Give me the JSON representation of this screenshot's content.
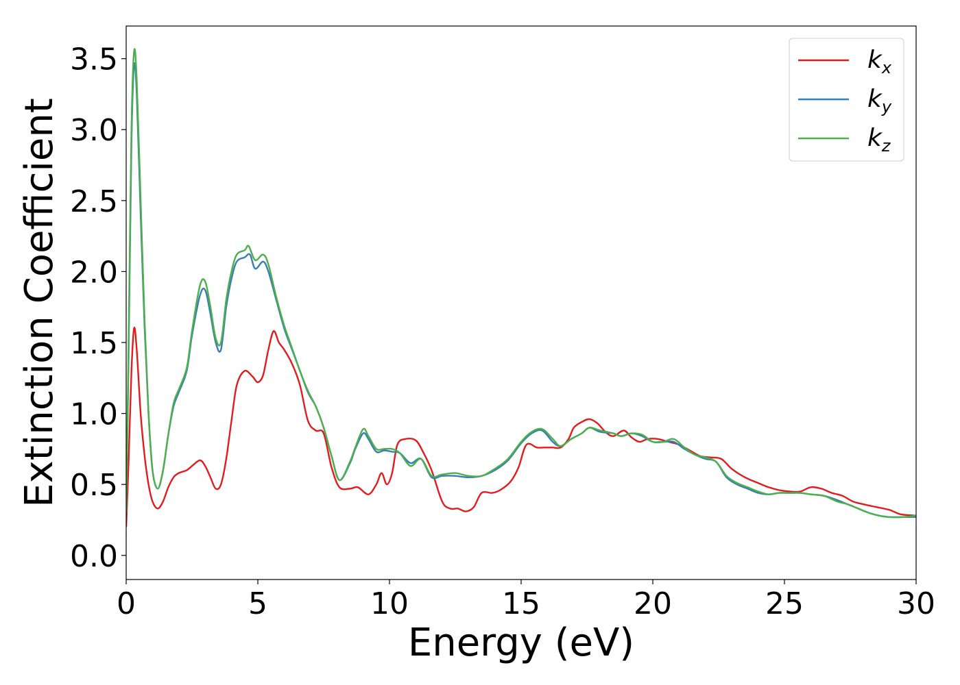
{
  "chart_data": {
    "type": "line",
    "xlabel": "Energy (eV)",
    "ylabel": "Extinction Coefficient",
    "xlim": [
      0,
      30
    ],
    "ylim": [
      -0.17,
      3.73
    ],
    "xticks": [
      0,
      5,
      10,
      15,
      20,
      25,
      30
    ],
    "xtick_labels": [
      "0",
      "5",
      "10",
      "15",
      "20",
      "25",
      "30"
    ],
    "yticks": [
      0.0,
      0.5,
      1.0,
      1.5,
      2.0,
      2.5,
      3.0,
      3.5
    ],
    "ytick_labels": [
      "0.0",
      "0.5",
      "1.0",
      "1.5",
      "2.0",
      "2.5",
      "3.0",
      "3.5"
    ],
    "grid": false,
    "legend_position": "top-right",
    "series": [
      {
        "name": "k",
        "subscript": "x",
        "color": "#e41a1c",
        "points": [
          [
            0,
            0.2
          ],
          [
            0.1,
            0.7
          ],
          [
            0.2,
            1.3
          ],
          [
            0.3,
            1.6
          ],
          [
            0.4,
            1.45
          ],
          [
            0.55,
            1.0
          ],
          [
            0.7,
            0.7
          ],
          [
            0.85,
            0.5
          ],
          [
            1.0,
            0.38
          ],
          [
            1.2,
            0.33
          ],
          [
            1.4,
            0.38
          ],
          [
            1.6,
            0.48
          ],
          [
            1.8,
            0.55
          ],
          [
            2.0,
            0.58
          ],
          [
            2.3,
            0.6
          ],
          [
            2.5,
            0.63
          ],
          [
            2.8,
            0.67
          ],
          [
            3.0,
            0.63
          ],
          [
            3.2,
            0.55
          ],
          [
            3.4,
            0.47
          ],
          [
            3.6,
            0.5
          ],
          [
            3.8,
            0.68
          ],
          [
            4.0,
            0.95
          ],
          [
            4.2,
            1.2
          ],
          [
            4.5,
            1.3
          ],
          [
            4.8,
            1.26
          ],
          [
            5.0,
            1.22
          ],
          [
            5.2,
            1.27
          ],
          [
            5.4,
            1.45
          ],
          [
            5.6,
            1.58
          ],
          [
            5.8,
            1.5
          ],
          [
            6.0,
            1.45
          ],
          [
            6.3,
            1.35
          ],
          [
            6.6,
            1.2
          ],
          [
            6.9,
            0.95
          ],
          [
            7.2,
            0.88
          ],
          [
            7.5,
            0.86
          ],
          [
            7.8,
            0.62
          ],
          [
            8.1,
            0.48
          ],
          [
            8.5,
            0.47
          ],
          [
            8.8,
            0.48
          ],
          [
            9.2,
            0.43
          ],
          [
            9.5,
            0.5
          ],
          [
            9.7,
            0.58
          ],
          [
            9.9,
            0.5
          ],
          [
            10.1,
            0.58
          ],
          [
            10.3,
            0.78
          ],
          [
            10.6,
            0.82
          ],
          [
            11.0,
            0.81
          ],
          [
            11.3,
            0.72
          ],
          [
            11.6,
            0.6
          ],
          [
            12.0,
            0.38
          ],
          [
            12.3,
            0.33
          ],
          [
            12.6,
            0.33
          ],
          [
            12.9,
            0.31
          ],
          [
            13.2,
            0.34
          ],
          [
            13.5,
            0.44
          ],
          [
            13.9,
            0.44
          ],
          [
            14.2,
            0.46
          ],
          [
            14.6,
            0.52
          ],
          [
            14.9,
            0.62
          ],
          [
            15.2,
            0.78
          ],
          [
            15.6,
            0.76
          ],
          [
            15.9,
            0.76
          ],
          [
            16.2,
            0.76
          ],
          [
            16.5,
            0.76
          ],
          [
            16.8,
            0.82
          ],
          [
            17.0,
            0.9
          ],
          [
            17.3,
            0.94
          ],
          [
            17.6,
            0.96
          ],
          [
            17.9,
            0.93
          ],
          [
            18.2,
            0.87
          ],
          [
            18.5,
            0.84
          ],
          [
            18.9,
            0.88
          ],
          [
            19.2,
            0.83
          ],
          [
            19.5,
            0.8
          ],
          [
            19.8,
            0.82
          ],
          [
            20.2,
            0.82
          ],
          [
            20.6,
            0.8
          ],
          [
            21.0,
            0.78
          ],
          [
            21.4,
            0.74
          ],
          [
            21.8,
            0.7
          ],
          [
            22.2,
            0.69
          ],
          [
            22.6,
            0.68
          ],
          [
            23.0,
            0.61
          ],
          [
            23.5,
            0.55
          ],
          [
            24.0,
            0.51
          ],
          [
            24.4,
            0.48
          ],
          [
            24.8,
            0.46
          ],
          [
            25.2,
            0.45
          ],
          [
            25.6,
            0.45
          ],
          [
            26.0,
            0.48
          ],
          [
            26.4,
            0.47
          ],
          [
            26.8,
            0.44
          ],
          [
            27.2,
            0.42
          ],
          [
            27.6,
            0.38
          ],
          [
            28.0,
            0.36
          ],
          [
            28.5,
            0.34
          ],
          [
            29.0,
            0.32
          ],
          [
            29.4,
            0.29
          ],
          [
            30.0,
            0.28
          ]
        ]
      },
      {
        "name": "k",
        "subscript": "y",
        "color": "#377eb8",
        "points": [
          [
            0,
            0.3
          ],
          [
            0.1,
            1.5
          ],
          [
            0.2,
            2.9
          ],
          [
            0.3,
            3.45
          ],
          [
            0.4,
            3.25
          ],
          [
            0.55,
            2.4
          ],
          [
            0.7,
            1.6
          ],
          [
            0.85,
            1.0
          ],
          [
            1.0,
            0.6
          ],
          [
            1.2,
            0.47
          ],
          [
            1.4,
            0.6
          ],
          [
            1.6,
            0.85
          ],
          [
            1.8,
            1.05
          ],
          [
            2.0,
            1.15
          ],
          [
            2.3,
            1.3
          ],
          [
            2.5,
            1.55
          ],
          [
            2.8,
            1.83
          ],
          [
            3.0,
            1.87
          ],
          [
            3.2,
            1.7
          ],
          [
            3.4,
            1.5
          ],
          [
            3.6,
            1.45
          ],
          [
            3.8,
            1.75
          ],
          [
            4.0,
            1.95
          ],
          [
            4.2,
            2.07
          ],
          [
            4.5,
            2.1
          ],
          [
            4.7,
            2.12
          ],
          [
            4.9,
            2.02
          ],
          [
            5.2,
            2.07
          ],
          [
            5.4,
            2.0
          ],
          [
            5.7,
            1.8
          ],
          [
            6.0,
            1.6
          ],
          [
            6.3,
            1.45
          ],
          [
            6.6,
            1.3
          ],
          [
            6.9,
            1.15
          ],
          [
            7.2,
            1.05
          ],
          [
            7.5,
            0.9
          ],
          [
            7.8,
            0.7
          ],
          [
            8.1,
            0.53
          ],
          [
            8.5,
            0.65
          ],
          [
            8.7,
            0.75
          ],
          [
            9.0,
            0.86
          ],
          [
            9.2,
            0.82
          ],
          [
            9.5,
            0.73
          ],
          [
            9.8,
            0.74
          ],
          [
            10.1,
            0.73
          ],
          [
            10.4,
            0.72
          ],
          [
            10.8,
            0.65
          ],
          [
            11.2,
            0.68
          ],
          [
            11.6,
            0.55
          ],
          [
            12.0,
            0.56
          ],
          [
            12.5,
            0.56
          ],
          [
            13.0,
            0.55
          ],
          [
            13.5,
            0.56
          ],
          [
            14.0,
            0.6
          ],
          [
            14.5,
            0.67
          ],
          [
            15.0,
            0.79
          ],
          [
            15.4,
            0.86
          ],
          [
            15.8,
            0.88
          ],
          [
            16.2,
            0.8
          ],
          [
            16.5,
            0.77
          ],
          [
            16.9,
            0.82
          ],
          [
            17.3,
            0.86
          ],
          [
            17.6,
            0.9
          ],
          [
            18.0,
            0.87
          ],
          [
            18.5,
            0.86
          ],
          [
            18.8,
            0.84
          ],
          [
            19.2,
            0.86
          ],
          [
            19.6,
            0.84
          ],
          [
            20.0,
            0.8
          ],
          [
            20.4,
            0.8
          ],
          [
            20.8,
            0.8
          ],
          [
            21.2,
            0.75
          ],
          [
            21.6,
            0.71
          ],
          [
            22.0,
            0.68
          ],
          [
            22.4,
            0.66
          ],
          [
            22.8,
            0.55
          ],
          [
            23.2,
            0.5
          ],
          [
            23.6,
            0.47
          ],
          [
            24.0,
            0.44
          ],
          [
            24.4,
            0.43
          ],
          [
            24.8,
            0.44
          ],
          [
            25.2,
            0.44
          ],
          [
            25.6,
            0.44
          ],
          [
            26.0,
            0.43
          ],
          [
            26.5,
            0.42
          ],
          [
            27.0,
            0.39
          ],
          [
            27.4,
            0.36
          ],
          [
            27.8,
            0.33
          ],
          [
            28.2,
            0.3
          ],
          [
            28.6,
            0.28
          ],
          [
            29.0,
            0.27
          ],
          [
            29.5,
            0.27
          ],
          [
            30.0,
            0.27
          ]
        ]
      },
      {
        "name": "k",
        "subscript": "z",
        "color": "#4daf4a",
        "points": [
          [
            0,
            0.3
          ],
          [
            0.1,
            1.6
          ],
          [
            0.2,
            3.0
          ],
          [
            0.3,
            3.55
          ],
          [
            0.4,
            3.35
          ],
          [
            0.55,
            2.5
          ],
          [
            0.7,
            1.65
          ],
          [
            0.85,
            1.0
          ],
          [
            1.0,
            0.6
          ],
          [
            1.2,
            0.47
          ],
          [
            1.4,
            0.6
          ],
          [
            1.6,
            0.85
          ],
          [
            1.8,
            1.07
          ],
          [
            2.0,
            1.17
          ],
          [
            2.3,
            1.32
          ],
          [
            2.5,
            1.58
          ],
          [
            2.8,
            1.9
          ],
          [
            3.0,
            1.93
          ],
          [
            3.2,
            1.75
          ],
          [
            3.4,
            1.53
          ],
          [
            3.6,
            1.5
          ],
          [
            3.8,
            1.8
          ],
          [
            4.0,
            2.0
          ],
          [
            4.2,
            2.12
          ],
          [
            4.5,
            2.15
          ],
          [
            4.65,
            2.18
          ],
          [
            4.9,
            2.08
          ],
          [
            5.2,
            2.12
          ],
          [
            5.4,
            2.05
          ],
          [
            5.7,
            1.82
          ],
          [
            6.0,
            1.62
          ],
          [
            6.3,
            1.46
          ],
          [
            6.6,
            1.3
          ],
          [
            6.9,
            1.16
          ],
          [
            7.2,
            1.05
          ],
          [
            7.5,
            0.9
          ],
          [
            7.8,
            0.7
          ],
          [
            8.1,
            0.53
          ],
          [
            8.5,
            0.66
          ],
          [
            8.7,
            0.76
          ],
          [
            9.0,
            0.89
          ],
          [
            9.2,
            0.84
          ],
          [
            9.5,
            0.75
          ],
          [
            9.8,
            0.75
          ],
          [
            10.1,
            0.75
          ],
          [
            10.4,
            0.72
          ],
          [
            10.8,
            0.63
          ],
          [
            11.2,
            0.68
          ],
          [
            11.6,
            0.56
          ],
          [
            12.0,
            0.57
          ],
          [
            12.5,
            0.58
          ],
          [
            13.0,
            0.56
          ],
          [
            13.5,
            0.56
          ],
          [
            14.0,
            0.61
          ],
          [
            14.5,
            0.68
          ],
          [
            15.0,
            0.8
          ],
          [
            15.4,
            0.87
          ],
          [
            15.8,
            0.89
          ],
          [
            16.2,
            0.82
          ],
          [
            16.5,
            0.77
          ],
          [
            16.9,
            0.82
          ],
          [
            17.3,
            0.86
          ],
          [
            17.6,
            0.9
          ],
          [
            18.0,
            0.88
          ],
          [
            18.5,
            0.86
          ],
          [
            18.8,
            0.84
          ],
          [
            19.2,
            0.86
          ],
          [
            19.6,
            0.85
          ],
          [
            20.0,
            0.8
          ],
          [
            20.4,
            0.8
          ],
          [
            20.8,
            0.82
          ],
          [
            21.2,
            0.76
          ],
          [
            21.6,
            0.71
          ],
          [
            22.0,
            0.69
          ],
          [
            22.4,
            0.66
          ],
          [
            22.8,
            0.56
          ],
          [
            23.2,
            0.51
          ],
          [
            23.6,
            0.48
          ],
          [
            24.0,
            0.45
          ],
          [
            24.4,
            0.43
          ],
          [
            24.8,
            0.44
          ],
          [
            25.2,
            0.44
          ],
          [
            25.6,
            0.44
          ],
          [
            26.0,
            0.43
          ],
          [
            26.5,
            0.42
          ],
          [
            27.0,
            0.38
          ],
          [
            27.4,
            0.36
          ],
          [
            27.8,
            0.33
          ],
          [
            28.2,
            0.3
          ],
          [
            28.6,
            0.28
          ],
          [
            29.0,
            0.27
          ],
          [
            29.5,
            0.27
          ],
          [
            30.0,
            0.28
          ]
        ]
      }
    ]
  }
}
